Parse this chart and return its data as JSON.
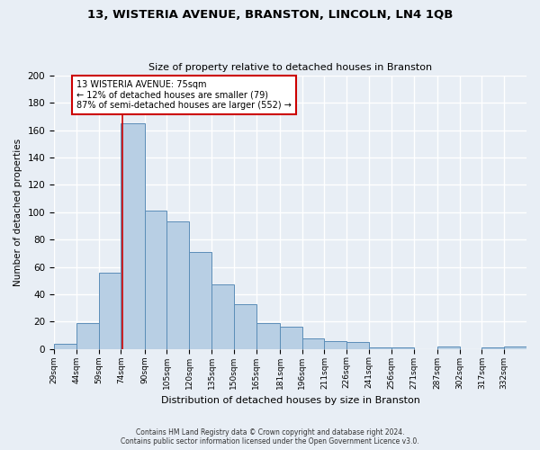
{
  "title": "13, WISTERIA AVENUE, BRANSTON, LINCOLN, LN4 1QB",
  "subtitle": "Size of property relative to detached houses in Branston",
  "xlabel": "Distribution of detached houses by size in Branston",
  "ylabel": "Number of detached properties",
  "footer_line1": "Contains HM Land Registry data © Crown copyright and database right 2024.",
  "footer_line2": "Contains public sector information licensed under the Open Government Licence v3.0.",
  "bin_labels": [
    "29sqm",
    "44sqm",
    "59sqm",
    "74sqm",
    "90sqm",
    "105sqm",
    "120sqm",
    "135sqm",
    "150sqm",
    "165sqm",
    "181sqm",
    "196sqm",
    "211sqm",
    "226sqm",
    "241sqm",
    "256sqm",
    "271sqm",
    "287sqm",
    "302sqm",
    "317sqm",
    "332sqm"
  ],
  "bin_edges": [
    29,
    44,
    59,
    74,
    90,
    105,
    120,
    135,
    150,
    165,
    181,
    196,
    211,
    226,
    241,
    256,
    271,
    287,
    302,
    317,
    332,
    347
  ],
  "bar_values": [
    4,
    19,
    56,
    165,
    101,
    93,
    71,
    47,
    33,
    19,
    16,
    8,
    6,
    5,
    1,
    1,
    0,
    2,
    0,
    1,
    2
  ],
  "bar_color": "#b8cfe4",
  "bar_edgecolor": "#5b8db8",
  "background_color": "#e8eef5",
  "grid_color": "#ffffff",
  "redline_x": 75,
  "annotation_title": "13 WISTERIA AVENUE: 75sqm",
  "annotation_line2": "← 12% of detached houses are smaller (79)",
  "annotation_line3": "87% of semi-detached houses are larger (552) →",
  "annotation_box_color": "#ffffff",
  "annotation_border_color": "#cc0000",
  "ylim": [
    0,
    200
  ],
  "yticks": [
    0,
    20,
    40,
    60,
    80,
    100,
    120,
    140,
    160,
    180,
    200
  ]
}
